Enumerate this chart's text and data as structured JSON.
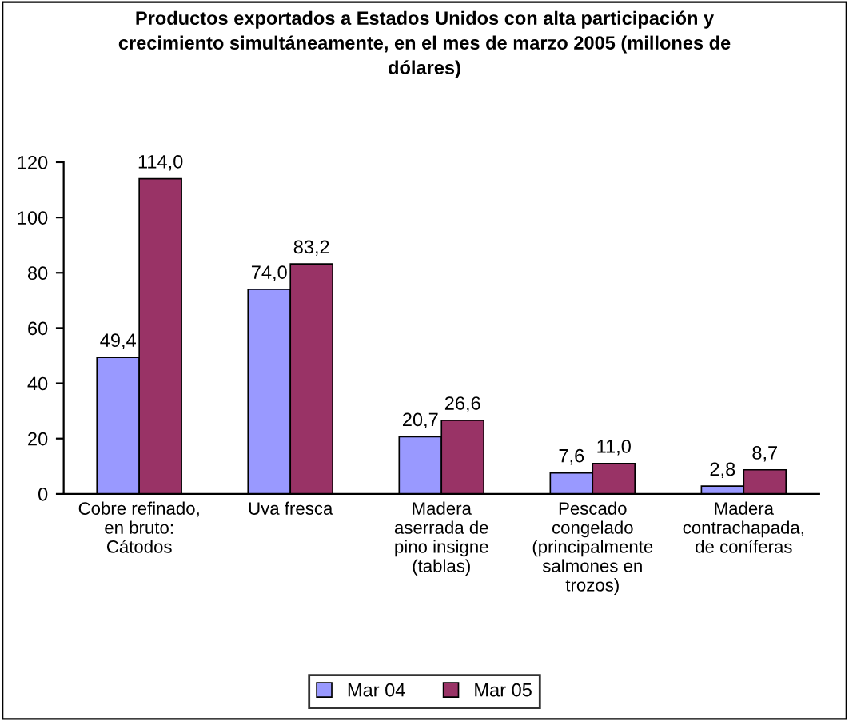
{
  "chart_data": {
    "type": "bar",
    "title": "Productos exportados a Estados Unidos con alta participación y\ncrecimiento simultáneamente, en el mes de marzo 2005 (millones de\ndólares)",
    "categories": [
      "Cobre refinado,\nen bruto:\nCátodos",
      "Uva fresca",
      "Madera\naserrada de\npino insigne\n(tablas)",
      "Pescado\ncongelado\n(principalmente\nsalmones en\ntrozos)",
      "Madera\ncontrachapada,\nde coníferas"
    ],
    "series": [
      {
        "name": "Mar 04",
        "color": "#9999ff",
        "values": [
          49.4,
          74.0,
          20.7,
          7.6,
          2.8
        ],
        "value_labels": [
          "49,4",
          "74,0",
          "20,7",
          "7,6",
          "2,8"
        ]
      },
      {
        "name": "Mar 05",
        "color": "#993366",
        "values": [
          114.0,
          83.2,
          26.6,
          11.0,
          8.7
        ],
        "value_labels": [
          "114,0",
          "83,2",
          "26,6",
          "11,0",
          "8,7"
        ]
      }
    ],
    "ylim": [
      0,
      120
    ],
    "yticks": [
      0,
      20,
      40,
      60,
      80,
      100,
      120
    ],
    "grid": false,
    "legend": "bottom"
  }
}
